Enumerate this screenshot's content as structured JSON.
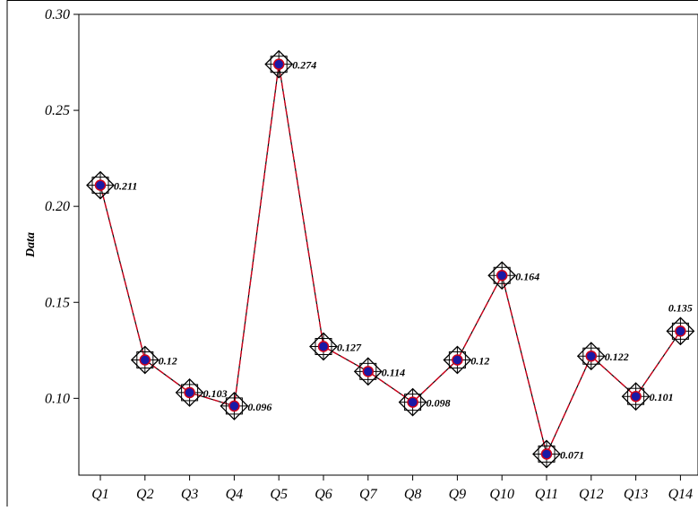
{
  "chart_data": {
    "type": "line",
    "title": "",
    "xlabel": "",
    "ylabel": "Data",
    "categories": [
      "Q1",
      "Q2",
      "Q3",
      "Q4",
      "Q5",
      "Q6",
      "Q7",
      "Q8",
      "Q9",
      "Q10",
      "Q11",
      "Q12",
      "Q13",
      "Q14"
    ],
    "series": [
      {
        "values": [
          0.211,
          0.12,
          0.103,
          0.096,
          0.274,
          0.127,
          0.114,
          0.098,
          0.12,
          0.164,
          0.071,
          0.122,
          0.101,
          0.135
        ],
        "data_labels": [
          "0.211",
          "0.12",
          "0.103",
          "0.096",
          "0.274",
          "0.127",
          "0.114",
          "0.098",
          "0.12",
          "0.164",
          "0.071",
          "0.122",
          "0.101",
          "0.135"
        ],
        "line_color": "#d0021b",
        "marker_fill": "#1a1aa6",
        "marker_outline": "#000000"
      }
    ],
    "ylim": [
      0.06,
      0.3
    ],
    "yticks": [
      0.1,
      0.15,
      0.2,
      0.25,
      0.3
    ],
    "ytick_labels": [
      "0.10",
      "0.15",
      "0.20",
      "0.25",
      "0.30"
    ],
    "grid": false,
    "legend": "none"
  }
}
